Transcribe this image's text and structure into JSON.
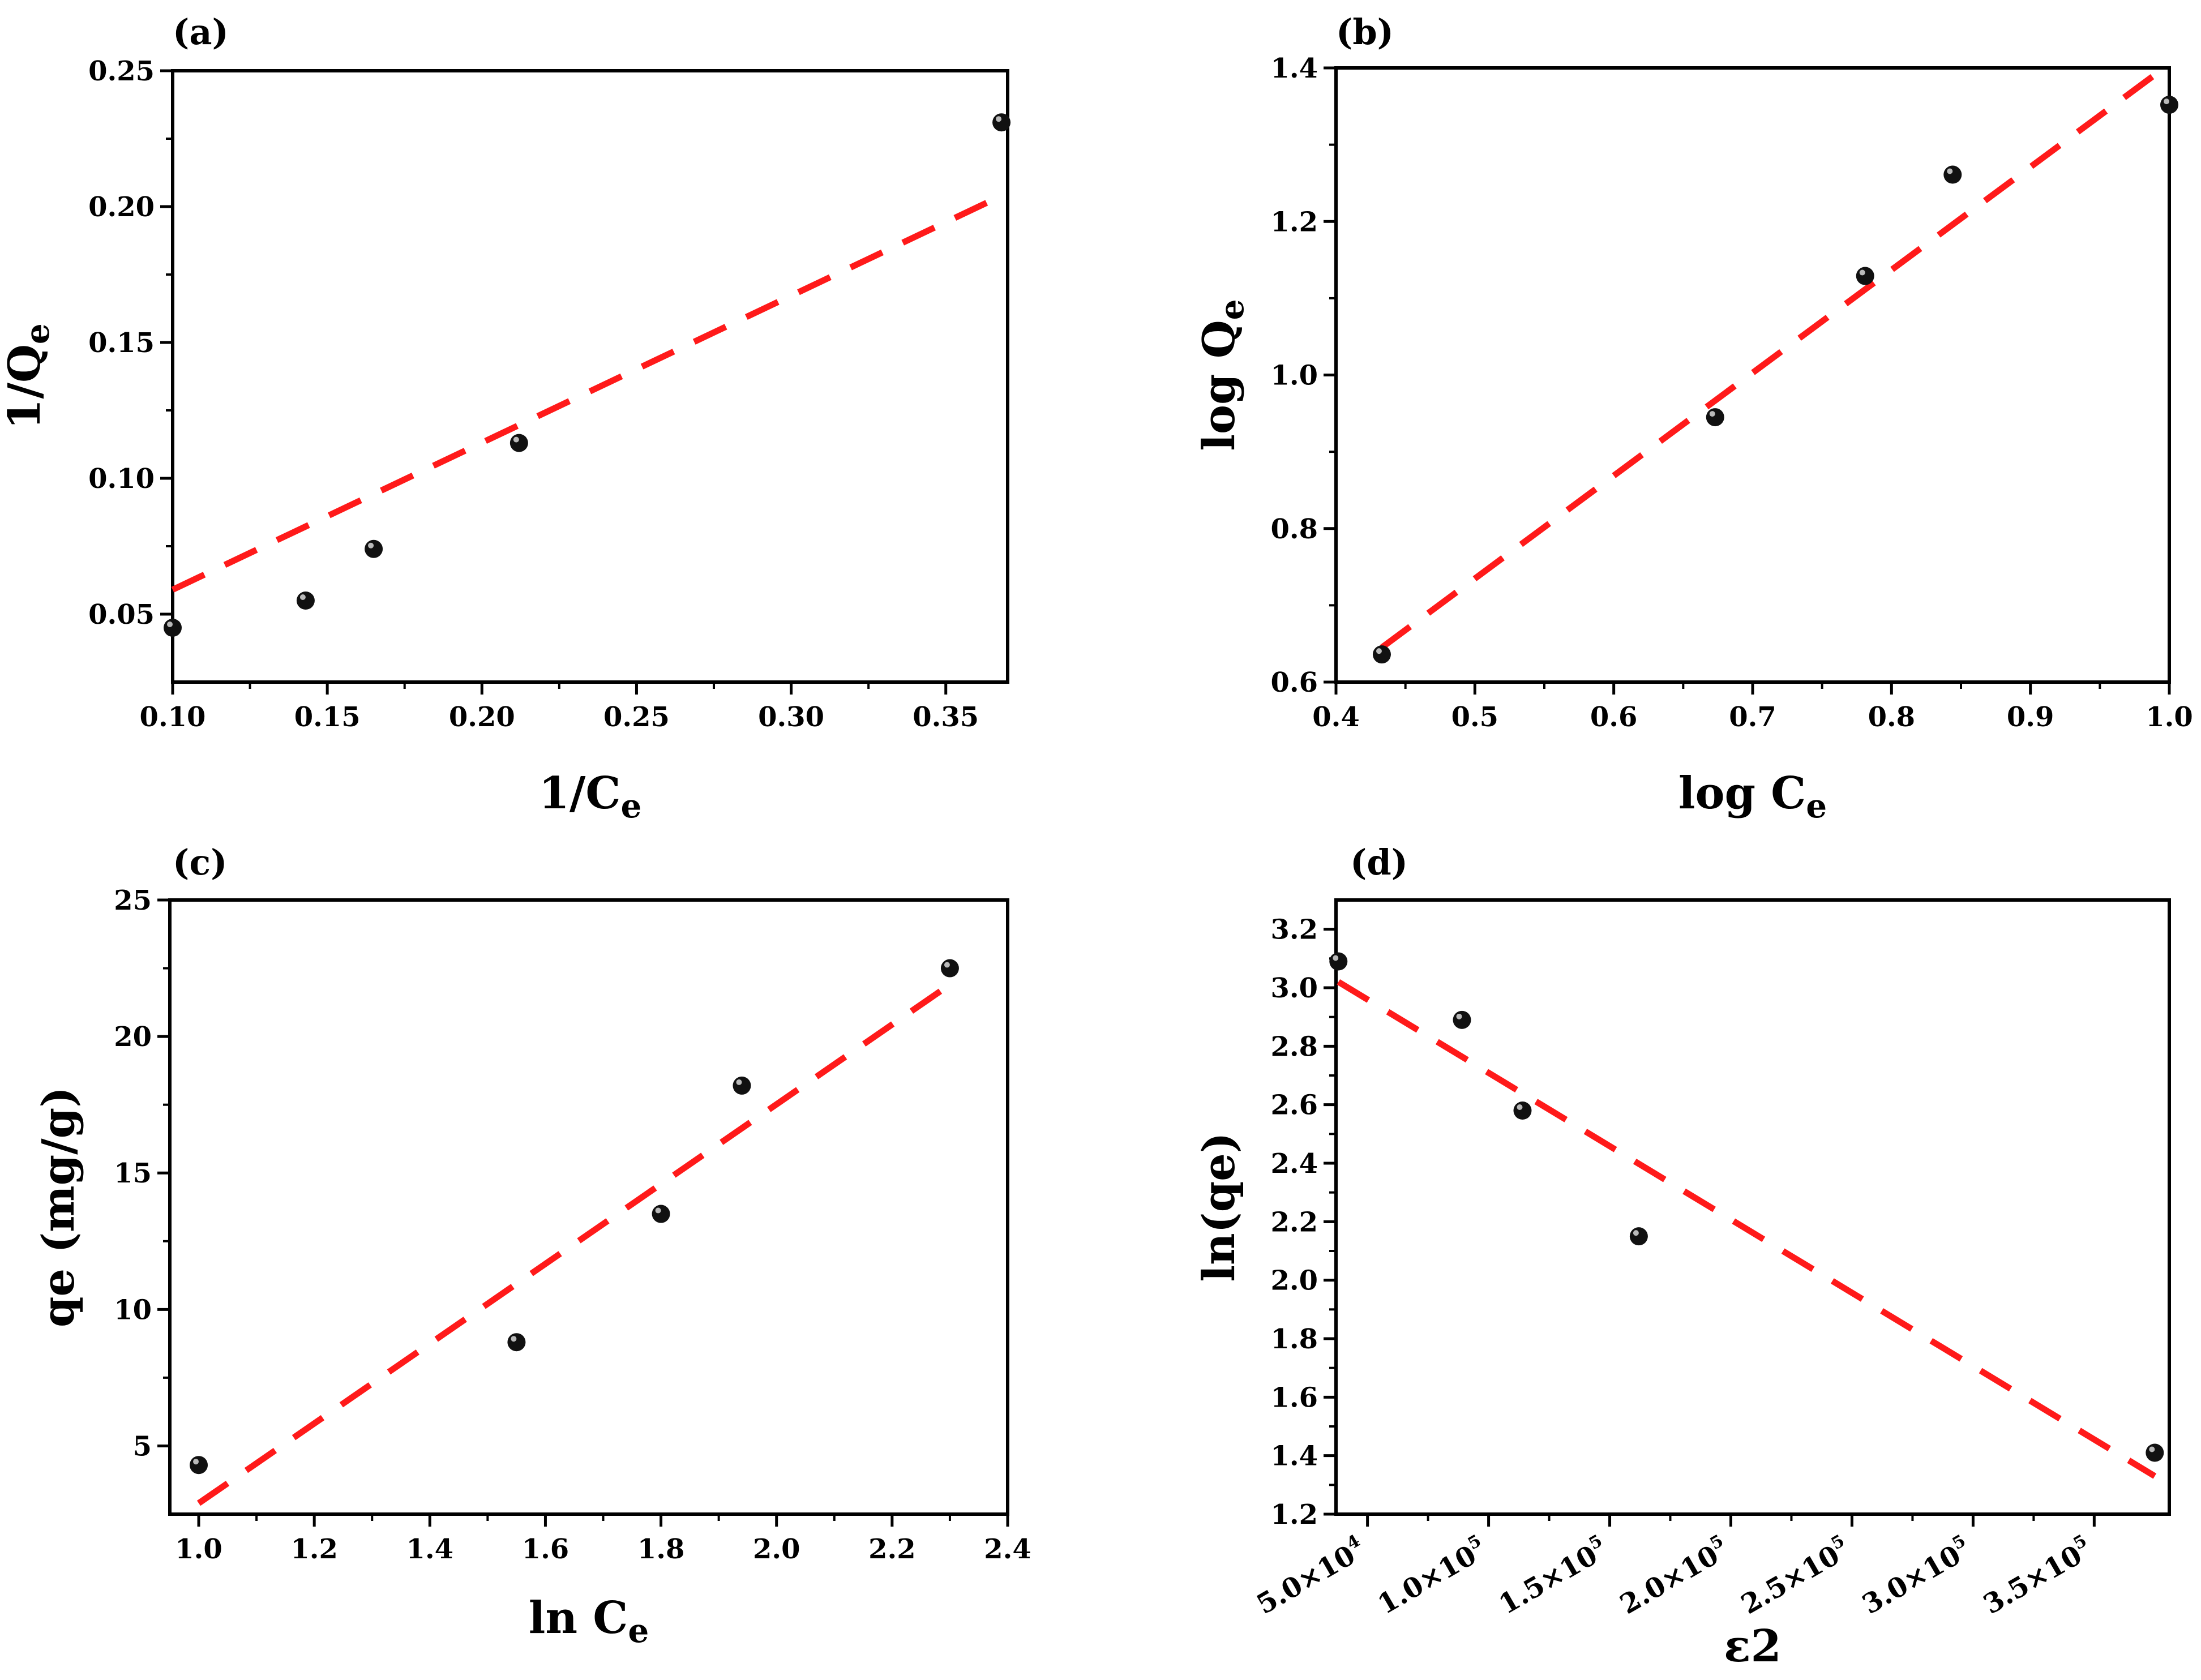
{
  "colors": {
    "fit_line": "#ff1a1a",
    "point": "#111111",
    "axes": "#000000",
    "background": "#ffffff"
  },
  "chart_data": [
    {
      "id": "a",
      "type": "scatter",
      "panel_label": "(a)",
      "xlabel": "1/C",
      "xlabel_sub": "e",
      "ylabel": "1/Q",
      "ylabel_sub": "e",
      "xlim": [
        0.1,
        0.37
      ],
      "ylim": [
        0.025,
        0.25
      ],
      "xticks": [
        {
          "v": 0.1,
          "label": "0.10"
        },
        {
          "v": 0.15,
          "label": "0.15"
        },
        {
          "v": 0.2,
          "label": "0.20"
        },
        {
          "v": 0.25,
          "label": "0.25"
        },
        {
          "v": 0.3,
          "label": "0.30"
        },
        {
          "v": 0.35,
          "label": "0.35"
        }
      ],
      "yticks": [
        {
          "v": 0.05,
          "label": "0.05"
        },
        {
          "v": 0.1,
          "label": "0.10"
        },
        {
          "v": 0.15,
          "label": "0.15"
        },
        {
          "v": 0.2,
          "label": "0.20"
        },
        {
          "v": 0.25,
          "label": "0.25"
        }
      ],
      "points": [
        {
          "x": 0.1,
          "y": 0.045
        },
        {
          "x": 0.143,
          "y": 0.055
        },
        {
          "x": 0.165,
          "y": 0.074
        },
        {
          "x": 0.212,
          "y": 0.113
        },
        {
          "x": 0.368,
          "y": 0.231
        }
      ],
      "fit": {
        "x": [
          0.1,
          0.368
        ],
        "y": [
          0.059,
          0.204
        ]
      }
    },
    {
      "id": "b",
      "type": "scatter",
      "panel_label": "(b)",
      "xlabel": "log C",
      "xlabel_sub": "e",
      "ylabel": "log Q",
      "ylabel_sub": "e",
      "xlim": [
        0.4,
        1.0
      ],
      "ylim": [
        0.6,
        1.4
      ],
      "xticks": [
        {
          "v": 0.4,
          "label": "0.4"
        },
        {
          "v": 0.5,
          "label": "0.5"
        },
        {
          "v": 0.6,
          "label": "0.6"
        },
        {
          "v": 0.7,
          "label": "0.7"
        },
        {
          "v": 0.8,
          "label": "0.8"
        },
        {
          "v": 0.9,
          "label": "0.9"
        },
        {
          "v": 1.0,
          "label": "1.0"
        }
      ],
      "yticks": [
        {
          "v": 0.6,
          "label": "0.6"
        },
        {
          "v": 0.8,
          "label": "0.8"
        },
        {
          "v": 1.0,
          "label": "1.0"
        },
        {
          "v": 1.2,
          "label": "1.2"
        },
        {
          "v": 1.4,
          "label": "1.4"
        }
      ],
      "points": [
        {
          "x": 0.433,
          "y": 0.636
        },
        {
          "x": 0.673,
          "y": 0.945
        },
        {
          "x": 0.781,
          "y": 1.129
        },
        {
          "x": 0.844,
          "y": 1.261
        },
        {
          "x": 1.0,
          "y": 1.352
        }
      ],
      "fit": {
        "x": [
          0.433,
          1.0
        ],
        "y": [
          0.645,
          1.405
        ]
      }
    },
    {
      "id": "c",
      "type": "scatter",
      "panel_label": "(c)",
      "xlabel": "ln C",
      "xlabel_sub": "e",
      "ylabel": "qe (mg/g)",
      "ylabel_sub": "",
      "xlim": [
        0.95,
        2.4
      ],
      "ylim": [
        2.5,
        25
      ],
      "xticks": [
        {
          "v": 1.0,
          "label": "1.0"
        },
        {
          "v": 1.2,
          "label": "1.2"
        },
        {
          "v": 1.4,
          "label": "1.4"
        },
        {
          "v": 1.6,
          "label": "1.6"
        },
        {
          "v": 1.8,
          "label": "1.8"
        },
        {
          "v": 2.0,
          "label": "2.0"
        },
        {
          "v": 2.2,
          "label": "2.2"
        },
        {
          "v": 2.4,
          "label": "2.4"
        }
      ],
      "yticks": [
        {
          "v": 5,
          "label": "5"
        },
        {
          "v": 10,
          "label": "10"
        },
        {
          "v": 15,
          "label": "15"
        },
        {
          "v": 20,
          "label": "20"
        },
        {
          "v": 25,
          "label": "25"
        }
      ],
      "points": [
        {
          "x": 1.0,
          "y": 4.3
        },
        {
          "x": 1.55,
          "y": 8.8
        },
        {
          "x": 1.8,
          "y": 13.5
        },
        {
          "x": 1.94,
          "y": 18.2
        },
        {
          "x": 2.3,
          "y": 22.5
        }
      ],
      "fit": {
        "x": [
          1.0,
          2.3
        ],
        "y": [
          2.9,
          21.9
        ]
      }
    },
    {
      "id": "d",
      "type": "scatter",
      "panel_label": "(d)",
      "xlabel": "ε2",
      "xlabel_sub": "",
      "ylabel": "ln(qe)",
      "ylabel_sub": "",
      "xlim": [
        37000,
        381000
      ],
      "ylim": [
        1.2,
        3.3
      ],
      "xticks": [
        {
          "v": 50000,
          "base": "5.0×10",
          "exp": "4"
        },
        {
          "v": 100000,
          "base": "1.0×10",
          "exp": "5"
        },
        {
          "v": 150000,
          "base": "1.5×10",
          "exp": "5"
        },
        {
          "v": 200000,
          "base": "2.0×10",
          "exp": "5"
        },
        {
          "v": 250000,
          "base": "2.5×10",
          "exp": "5"
        },
        {
          "v": 300000,
          "base": "3.0×10",
          "exp": "5"
        },
        {
          "v": 350000,
          "base": "3.5×10",
          "exp": "5"
        }
      ],
      "yticks": [
        {
          "v": 1.2,
          "label": "1.2"
        },
        {
          "v": 1.4,
          "label": "1.4"
        },
        {
          "v": 1.6,
          "label": "1.6"
        },
        {
          "v": 1.8,
          "label": "1.8"
        },
        {
          "v": 2.0,
          "label": "2.0"
        },
        {
          "v": 2.2,
          "label": "2.2"
        },
        {
          "v": 2.4,
          "label": "2.4"
        },
        {
          "v": 2.6,
          "label": "2.6"
        },
        {
          "v": 2.8,
          "label": "2.8"
        },
        {
          "v": 3.0,
          "label": "3.0"
        },
        {
          "v": 3.2,
          "label": "3.2"
        }
      ],
      "points": [
        {
          "x": 38000,
          "y": 3.09
        },
        {
          "x": 89000,
          "y": 2.89
        },
        {
          "x": 114000,
          "y": 2.58
        },
        {
          "x": 162000,
          "y": 2.15
        },
        {
          "x": 375000,
          "y": 1.41
        }
      ],
      "fit": {
        "x": [
          38000,
          375000
        ],
        "y": [
          3.02,
          1.33
        ]
      }
    }
  ]
}
